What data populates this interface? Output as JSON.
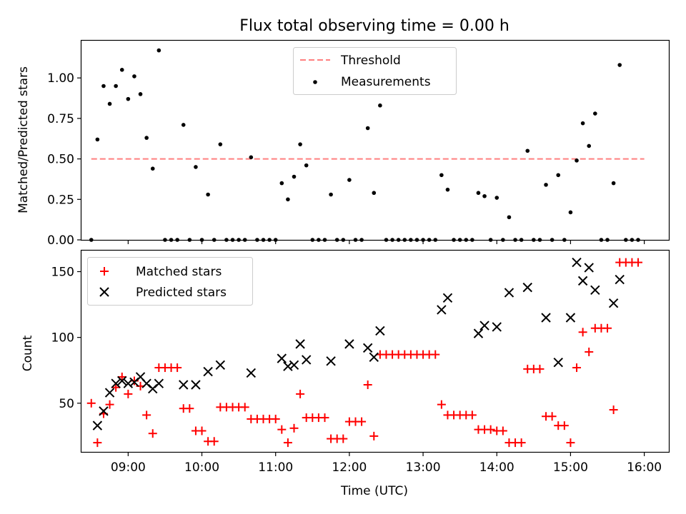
{
  "chart_data": [
    {
      "type": "scatter",
      "title": "Flux total observing time = 0.00 h",
      "xlabel": "",
      "ylabel": "Matched/Predicted stars",
      "xlim": [
        "08:22",
        "16:20"
      ],
      "ylim": [
        0,
        1.23
      ],
      "yticks": [
        0.0,
        0.25,
        0.5,
        0.75,
        1.0
      ],
      "ytick_labels": [
        "0.00",
        "0.25",
        "0.50",
        "0.75",
        "1.00"
      ],
      "legend_position": "top-center",
      "threshold": {
        "name": "Threshold",
        "value": 0.5,
        "x_range": [
          "08:30",
          "16:00"
        ],
        "color": "#ff7f7f",
        "style": "dashed"
      },
      "series": [
        {
          "name": "Measurements",
          "marker": "dot",
          "color": "#000000",
          "points": [
            [
              "08:30",
              0.0
            ],
            [
              "08:35",
              0.62
            ],
            [
              "08:40",
              0.95
            ],
            [
              "08:45",
              0.84
            ],
            [
              "08:50",
              0.95
            ],
            [
              "08:55",
              1.05
            ],
            [
              "09:00",
              0.87
            ],
            [
              "09:05",
              1.01
            ],
            [
              "09:10",
              0.9
            ],
            [
              "09:15",
              0.63
            ],
            [
              "09:20",
              0.44
            ],
            [
              "09:25",
              1.17
            ],
            [
              "09:30",
              0.0
            ],
            [
              "09:35",
              0.0
            ],
            [
              "09:40",
              0.0
            ],
            [
              "09:45",
              0.71
            ],
            [
              "09:50",
              0.0
            ],
            [
              "09:55",
              0.45
            ],
            [
              "10:00",
              0.0
            ],
            [
              "10:05",
              0.28
            ],
            [
              "10:10",
              0.0
            ],
            [
              "10:15",
              0.59
            ],
            [
              "10:20",
              0.0
            ],
            [
              "10:25",
              0.0
            ],
            [
              "10:30",
              0.0
            ],
            [
              "10:35",
              0.0
            ],
            [
              "10:40",
              0.51
            ],
            [
              "10:45",
              0.0
            ],
            [
              "10:50",
              0.0
            ],
            [
              "10:55",
              0.0
            ],
            [
              "11:00",
              0.0
            ],
            [
              "11:05",
              0.35
            ],
            [
              "11:10",
              0.25
            ],
            [
              "11:15",
              0.39
            ],
            [
              "11:20",
              0.59
            ],
            [
              "11:25",
              0.46
            ],
            [
              "11:30",
              0.0
            ],
            [
              "11:35",
              0.0
            ],
            [
              "11:40",
              0.0
            ],
            [
              "11:45",
              0.28
            ],
            [
              "11:50",
              0.0
            ],
            [
              "11:55",
              0.0
            ],
            [
              "12:00",
              0.37
            ],
            [
              "12:05",
              0.0
            ],
            [
              "12:10",
              0.0
            ],
            [
              "12:15",
              0.69
            ],
            [
              "12:20",
              0.29
            ],
            [
              "12:25",
              0.83
            ],
            [
              "12:30",
              0.0
            ],
            [
              "12:35",
              0.0
            ],
            [
              "12:40",
              0.0
            ],
            [
              "12:45",
              0.0
            ],
            [
              "12:50",
              0.0
            ],
            [
              "12:55",
              0.0
            ],
            [
              "13:00",
              0.0
            ],
            [
              "13:05",
              0.0
            ],
            [
              "13:10",
              0.0
            ],
            [
              "13:15",
              0.4
            ],
            [
              "13:20",
              0.31
            ],
            [
              "13:25",
              0.0
            ],
            [
              "13:30",
              0.0
            ],
            [
              "13:35",
              0.0
            ],
            [
              "13:40",
              0.0
            ],
            [
              "13:45",
              0.29
            ],
            [
              "13:50",
              0.27
            ],
            [
              "13:55",
              0.0
            ],
            [
              "14:00",
              0.26
            ],
            [
              "14:05",
              0.0
            ],
            [
              "14:10",
              0.14
            ],
            [
              "14:15",
              0.0
            ],
            [
              "14:20",
              0.0
            ],
            [
              "14:25",
              0.55
            ],
            [
              "14:30",
              0.0
            ],
            [
              "14:35",
              0.0
            ],
            [
              "14:40",
              0.34
            ],
            [
              "14:45",
              0.0
            ],
            [
              "14:50",
              0.4
            ],
            [
              "14:55",
              0.0
            ],
            [
              "15:00",
              0.17
            ],
            [
              "15:05",
              0.49
            ],
            [
              "15:10",
              0.72
            ],
            [
              "15:15",
              0.58
            ],
            [
              "15:20",
              0.78
            ],
            [
              "15:25",
              0.0
            ],
            [
              "15:30",
              0.0
            ],
            [
              "15:35",
              0.35
            ],
            [
              "15:40",
              1.08
            ],
            [
              "15:45",
              0.0
            ],
            [
              "15:50",
              0.0
            ],
            [
              "15:55",
              0.0
            ]
          ]
        }
      ]
    },
    {
      "type": "scatter",
      "title": "",
      "xlabel": "Time (UTC)",
      "ylabel": "Count",
      "xlim": [
        "08:22",
        "16:20"
      ],
      "ylim": [
        13,
        166
      ],
      "yticks": [
        50,
        100,
        150
      ],
      "ytick_labels": [
        "50",
        "100",
        "150"
      ],
      "xticks": [
        "09:00",
        "10:00",
        "11:00",
        "12:00",
        "13:00",
        "14:00",
        "15:00",
        "16:00"
      ],
      "xtick_labels": [
        "09:00",
        "10:00",
        "11:00",
        "12:00",
        "13:00",
        "14:00",
        "15:00",
        "16:00"
      ],
      "legend_position": "top-left",
      "series": [
        {
          "name": "Matched stars",
          "marker": "plus",
          "color": "#ff0000",
          "points": [
            [
              "08:30",
              50
            ],
            [
              "08:35",
              20
            ],
            [
              "08:40",
              42
            ],
            [
              "08:45",
              49
            ],
            [
              "08:50",
              62
            ],
            [
              "08:55",
              70
            ],
            [
              "09:00",
              57
            ],
            [
              "09:05",
              67
            ],
            [
              "09:10",
              63
            ],
            [
              "09:15",
              41
            ],
            [
              "09:20",
              27
            ],
            [
              "09:25",
              77
            ],
            [
              "09:30",
              77
            ],
            [
              "09:35",
              77
            ],
            [
              "09:40",
              77
            ],
            [
              "09:45",
              46
            ],
            [
              "09:50",
              46
            ],
            [
              "09:55",
              29
            ],
            [
              "10:00",
              29
            ],
            [
              "10:05",
              21
            ],
            [
              "10:10",
              21
            ],
            [
              "10:15",
              47
            ],
            [
              "10:20",
              47
            ],
            [
              "10:25",
              47
            ],
            [
              "10:30",
              47
            ],
            [
              "10:35",
              47
            ],
            [
              "10:40",
              38
            ],
            [
              "10:45",
              38
            ],
            [
              "10:50",
              38
            ],
            [
              "10:55",
              38
            ],
            [
              "11:00",
              38
            ],
            [
              "11:05",
              30
            ],
            [
              "11:10",
              20
            ],
            [
              "11:15",
              31
            ],
            [
              "11:20",
              57
            ],
            [
              "11:25",
              39
            ],
            [
              "11:30",
              39
            ],
            [
              "11:35",
              39
            ],
            [
              "11:40",
              39
            ],
            [
              "11:45",
              23
            ],
            [
              "11:50",
              23
            ],
            [
              "11:55",
              23
            ],
            [
              "12:00",
              36
            ],
            [
              "12:05",
              36
            ],
            [
              "12:10",
              36
            ],
            [
              "12:15",
              64
            ],
            [
              "12:20",
              25
            ],
            [
              "12:25",
              87
            ],
            [
              "12:30",
              87
            ],
            [
              "12:35",
              87
            ],
            [
              "12:40",
              87
            ],
            [
              "12:45",
              87
            ],
            [
              "12:50",
              87
            ],
            [
              "12:55",
              87
            ],
            [
              "13:00",
              87
            ],
            [
              "13:05",
              87
            ],
            [
              "13:10",
              87
            ],
            [
              "13:15",
              49
            ],
            [
              "13:20",
              41
            ],
            [
              "13:25",
              41
            ],
            [
              "13:30",
              41
            ],
            [
              "13:35",
              41
            ],
            [
              "13:40",
              41
            ],
            [
              "13:45",
              30
            ],
            [
              "13:50",
              30
            ],
            [
              "13:55",
              30
            ],
            [
              "14:00",
              29
            ],
            [
              "14:05",
              29
            ],
            [
              "14:10",
              20
            ],
            [
              "14:15",
              20
            ],
            [
              "14:20",
              20
            ],
            [
              "14:25",
              76
            ],
            [
              "14:30",
              76
            ],
            [
              "14:35",
              76
            ],
            [
              "14:40",
              40
            ],
            [
              "14:45",
              40
            ],
            [
              "14:50",
              33
            ],
            [
              "14:55",
              33
            ],
            [
              "15:00",
              20
            ],
            [
              "15:05",
              77
            ],
            [
              "15:10",
              104
            ],
            [
              "15:15",
              89
            ],
            [
              "15:20",
              107
            ],
            [
              "15:25",
              107
            ],
            [
              "15:30",
              107
            ],
            [
              "15:35",
              45
            ],
            [
              "15:40",
              157
            ],
            [
              "15:45",
              157
            ],
            [
              "15:50",
              157
            ],
            [
              "15:55",
              157
            ]
          ]
        },
        {
          "name": "Predicted stars",
          "marker": "x",
          "color": "#000000",
          "points": [
            [
              "08:35",
              33
            ],
            [
              "08:40",
              44
            ],
            [
              "08:45",
              58
            ],
            [
              "08:50",
              65
            ],
            [
              "08:55",
              67
            ],
            [
              "09:00",
              65
            ],
            [
              "09:05",
              66
            ],
            [
              "09:10",
              70
            ],
            [
              "09:15",
              65
            ],
            [
              "09:20",
              61
            ],
            [
              "09:25",
              65
            ],
            [
              "09:45",
              64
            ],
            [
              "09:55",
              64
            ],
            [
              "10:05",
              74
            ],
            [
              "10:15",
              79
            ],
            [
              "10:40",
              73
            ],
            [
              "11:05",
              84
            ],
            [
              "11:10",
              78
            ],
            [
              "11:15",
              79
            ],
            [
              "11:20",
              95
            ],
            [
              "11:25",
              83
            ],
            [
              "11:45",
              82
            ],
            [
              "12:00",
              95
            ],
            [
              "12:15",
              92
            ],
            [
              "12:20",
              85
            ],
            [
              "12:25",
              105
            ],
            [
              "13:15",
              121
            ],
            [
              "13:20",
              130
            ],
            [
              "13:45",
              103
            ],
            [
              "13:50",
              109
            ],
            [
              "14:00",
              108
            ],
            [
              "14:10",
              134
            ],
            [
              "14:25",
              138
            ],
            [
              "14:40",
              115
            ],
            [
              "14:50",
              81
            ],
            [
              "15:00",
              115
            ],
            [
              "15:05",
              157
            ],
            [
              "15:10",
              143
            ],
            [
              "15:15",
              153
            ],
            [
              "15:20",
              136
            ],
            [
              "15:35",
              126
            ],
            [
              "15:40",
              144
            ]
          ]
        }
      ]
    }
  ]
}
